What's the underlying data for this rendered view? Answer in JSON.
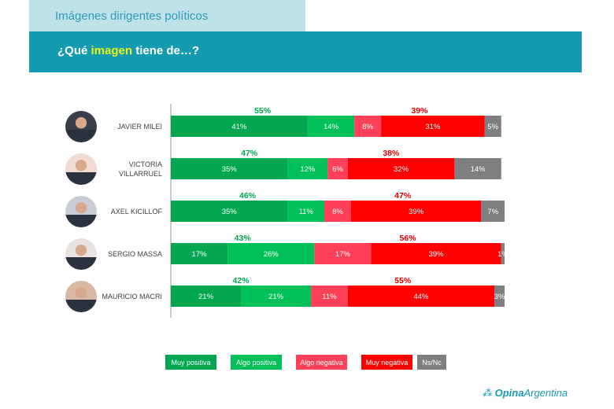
{
  "header": {
    "section_title": "Imágenes dirigentes políticos",
    "question_prefix": "¿Qué ",
    "question_highlight": "imagen",
    "question_suffix": " tiene de…?"
  },
  "colors": {
    "muy_positiva": "#00a650",
    "algo_positiva": "#00c05a",
    "algo_negativa": "#ff4058",
    "muy_negativa": "#ff0000",
    "ns_nc": "#7f7f7f",
    "positive_total_text": "#00a650",
    "negative_total_text": "#e00000",
    "header_light": "#bfe2ea",
    "header_dark": "#159bb0",
    "highlight": "#e8f41a"
  },
  "chart_data": {
    "type": "bar",
    "orientation": "horizontal",
    "stacked": true,
    "title": "¿Qué imagen tiene de…?",
    "categories": [
      "JAVIER MILEI",
      "VICTORIA VILLARRUEL",
      "AXEL KICILLOF",
      "SERGIO MASSA",
      "MAURICIO MACRI"
    ],
    "category_lines": [
      [
        "JAVIER MILEI"
      ],
      [
        "VICTORIA",
        "VILLARRUEL"
      ],
      [
        "AXEL KICILLOF"
      ],
      [
        "SERGIO MASSA"
      ],
      [
        "MAURICIO MACRI"
      ]
    ],
    "series": [
      {
        "name": "Muy positiva",
        "key": "muy_positiva",
        "values": [
          41,
          35,
          35,
          17,
          21
        ],
        "labels": [
          "41%",
          "35%",
          "35%",
          "17%",
          "21%"
        ]
      },
      {
        "name": "Algo positiva",
        "key": "algo_positiva",
        "values": [
          14,
          12,
          11,
          26,
          21
        ],
        "labels": [
          "14%",
          "12%",
          "11%",
          "26%",
          "21%"
        ]
      },
      {
        "name": "Algo negativa",
        "key": "algo_negativa",
        "values": [
          8,
          6,
          8,
          17,
          11
        ],
        "labels": [
          "8%",
          "6%",
          "8%",
          "17%",
          "11%"
        ]
      },
      {
        "name": "Muy negativa",
        "key": "muy_negativa",
        "values": [
          31,
          32,
          39,
          39,
          44
        ],
        "labels": [
          "31%",
          "32%",
          "39%",
          "39%",
          "44%"
        ]
      },
      {
        "name": "Ns/Nc",
        "key": "ns_nc",
        "values": [
          5,
          14,
          7,
          1,
          3
        ],
        "labels": [
          "5%",
          "14%",
          "7%",
          "1%",
          "3%"
        ]
      }
    ],
    "positive_totals": [
      "55%",
      "47%",
      "46%",
      "43%",
      "42%"
    ],
    "negative_totals": [
      "39%",
      "38%",
      "47%",
      "56%",
      "55%"
    ],
    "xlim": [
      0,
      100
    ],
    "legend": [
      "Muy positiva",
      "Algo positiva",
      "Algo negativa",
      "Muy negativa",
      "Ns/Nc"
    ],
    "legend_position": "bottom",
    "grid": false
  },
  "footer": {
    "logo_bold": "Opina",
    "logo_regular": "Argentina"
  }
}
